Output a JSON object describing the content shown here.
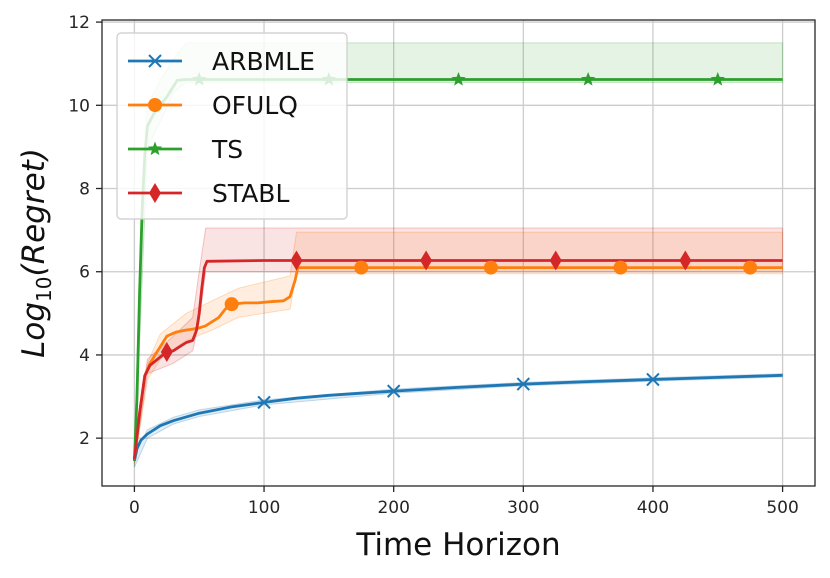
{
  "chart_data": {
    "type": "line",
    "xlabel": "Time Horizon",
    "ylabel_base": "Log",
    "ylabel_sub": "10",
    "ylabel_arg": "(Regret)",
    "xlim": [
      -25,
      525
    ],
    "ylim": [
      0.85,
      12.05
    ],
    "xticks": [
      0,
      100,
      200,
      300,
      400,
      500
    ],
    "yticks": [
      2,
      4,
      6,
      8,
      10,
      12
    ],
    "grid": true,
    "legend_position": "top-left",
    "series": [
      {
        "name": "ARBMLE",
        "color": "#1f77b4",
        "marker": "x",
        "markers_at": [
          100,
          200,
          300,
          400
        ],
        "points": [
          [
            0,
            1.45
          ],
          [
            2,
            1.75
          ],
          [
            5,
            1.95
          ],
          [
            10,
            2.1
          ],
          [
            20,
            2.3
          ],
          [
            30,
            2.42
          ],
          [
            50,
            2.6
          ],
          [
            75,
            2.75
          ],
          [
            100,
            2.86
          ],
          [
            125,
            2.96
          ],
          [
            150,
            3.03
          ],
          [
            175,
            3.08
          ],
          [
            200,
            3.13
          ],
          [
            250,
            3.22
          ],
          [
            300,
            3.3
          ],
          [
            350,
            3.36
          ],
          [
            400,
            3.41
          ],
          [
            450,
            3.46
          ],
          [
            500,
            3.51
          ]
        ],
        "band": {
          "upper": [
            [
              0,
              1.6
            ],
            [
              10,
              2.2
            ],
            [
              30,
              2.5
            ],
            [
              50,
              2.68
            ],
            [
              100,
              2.92
            ],
            [
              200,
              3.18
            ],
            [
              300,
              3.34
            ],
            [
              400,
              3.45
            ],
            [
              500,
              3.55
            ]
          ],
          "lower": [
            [
              0,
              1.3
            ],
            [
              10,
              2.0
            ],
            [
              30,
              2.34
            ],
            [
              50,
              2.52
            ],
            [
              100,
              2.8
            ],
            [
              200,
              3.08
            ],
            [
              300,
              3.26
            ],
            [
              400,
              3.37
            ],
            [
              500,
              3.47
            ]
          ]
        }
      },
      {
        "name": "OFULQ",
        "color": "#ff7f0e",
        "marker": "o",
        "markers_at": [
          75,
          175,
          275,
          375,
          475
        ],
        "points": [
          [
            0,
            1.5
          ],
          [
            4,
            2.6
          ],
          [
            8,
            3.5
          ],
          [
            12,
            3.8
          ],
          [
            18,
            4.1
          ],
          [
            25,
            4.45
          ],
          [
            32,
            4.55
          ],
          [
            40,
            4.6
          ],
          [
            45,
            4.62
          ],
          [
            50,
            4.65
          ],
          [
            55,
            4.7
          ],
          [
            60,
            4.8
          ],
          [
            65,
            4.9
          ],
          [
            70,
            5.1
          ],
          [
            75,
            5.22
          ],
          [
            85,
            5.25
          ],
          [
            95,
            5.25
          ],
          [
            105,
            5.28
          ],
          [
            115,
            5.3
          ],
          [
            120,
            5.4
          ],
          [
            124,
            5.8
          ],
          [
            126,
            6.1
          ],
          [
            200,
            6.1
          ],
          [
            300,
            6.1
          ],
          [
            400,
            6.1
          ],
          [
            500,
            6.1
          ]
        ],
        "band": {
          "upper": [
            [
              0,
              1.6
            ],
            [
              10,
              3.8
            ],
            [
              20,
              4.5
            ],
            [
              40,
              5.0
            ],
            [
              60,
              5.3
            ],
            [
              80,
              5.6
            ],
            [
              100,
              5.75
            ],
            [
              120,
              5.9
            ],
            [
              125,
              6.95
            ],
            [
              500,
              6.95
            ]
          ],
          "lower": [
            [
              0,
              1.4
            ],
            [
              10,
              3.4
            ],
            [
              20,
              3.9
            ],
            [
              40,
              4.35
            ],
            [
              60,
              4.6
            ],
            [
              80,
              4.9
            ],
            [
              100,
              5.0
            ],
            [
              120,
              5.1
            ],
            [
              125,
              5.95
            ],
            [
              500,
              5.95
            ]
          ]
        }
      },
      {
        "name": "TS",
        "color": "#2ca02c",
        "marker": "*",
        "markers_at": [
          50,
          150,
          250,
          350,
          450
        ],
        "points": [
          [
            0,
            1.45
          ],
          [
            2,
            3.0
          ],
          [
            4,
            5.5
          ],
          [
            6,
            7.5
          ],
          [
            8,
            8.8
          ],
          [
            10,
            9.5
          ],
          [
            15,
            9.8
          ],
          [
            20,
            10.0
          ],
          [
            25,
            10.2
          ],
          [
            30,
            10.45
          ],
          [
            33,
            10.6
          ],
          [
            40,
            10.62
          ],
          [
            60,
            10.62
          ],
          [
            100,
            10.62
          ],
          [
            200,
            10.62
          ],
          [
            300,
            10.62
          ],
          [
            400,
            10.62
          ],
          [
            500,
            10.62
          ]
        ],
        "band": {
          "upper": [
            [
              0,
              1.6
            ],
            [
              5,
              7.0
            ],
            [
              10,
              10.0
            ],
            [
              20,
              10.6
            ],
            [
              30,
              11.1
            ],
            [
              40,
              11.5
            ],
            [
              500,
              11.5
            ]
          ],
          "lower": [
            [
              0,
              1.3
            ],
            [
              5,
              5.0
            ],
            [
              10,
              9.0
            ],
            [
              20,
              9.6
            ],
            [
              30,
              10.3
            ],
            [
              40,
              10.55
            ],
            [
              500,
              10.55
            ]
          ]
        }
      },
      {
        "name": "STABL",
        "color": "#d62728",
        "marker": "d",
        "markers_at": [
          25,
          125,
          225,
          325,
          425
        ],
        "points": [
          [
            0,
            1.5
          ],
          [
            4,
            2.6
          ],
          [
            8,
            3.5
          ],
          [
            12,
            3.75
          ],
          [
            18,
            3.9
          ],
          [
            22,
            4.0
          ],
          [
            25,
            4.07
          ],
          [
            30,
            4.1
          ],
          [
            35,
            4.2
          ],
          [
            40,
            4.3
          ],
          [
            45,
            4.35
          ],
          [
            48,
            4.6
          ],
          [
            50,
            5.0
          ],
          [
            52,
            5.6
          ],
          [
            54,
            6.1
          ],
          [
            56,
            6.25
          ],
          [
            100,
            6.27
          ],
          [
            200,
            6.27
          ],
          [
            300,
            6.27
          ],
          [
            400,
            6.27
          ],
          [
            500,
            6.27
          ]
        ],
        "band": {
          "upper": [
            [
              0,
              1.6
            ],
            [
              10,
              3.9
            ],
            [
              30,
              4.45
            ],
            [
              45,
              4.9
            ],
            [
              50,
              6.0
            ],
            [
              55,
              7.05
            ],
            [
              500,
              7.05
            ]
          ],
          "lower": [
            [
              0,
              1.4
            ],
            [
              10,
              3.55
            ],
            [
              30,
              3.8
            ],
            [
              45,
              4.1
            ],
            [
              50,
              4.8
            ],
            [
              55,
              6.0
            ],
            [
              500,
              6.0
            ]
          ]
        }
      }
    ]
  }
}
